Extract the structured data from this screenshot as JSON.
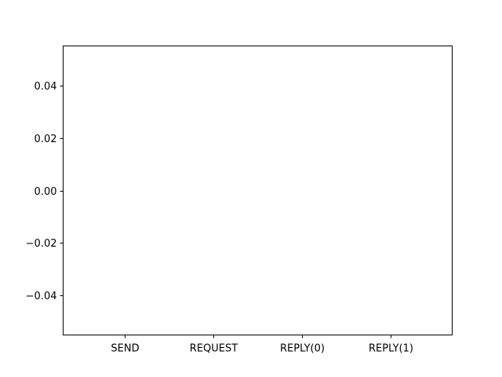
{
  "chart_data": {
    "type": "bar",
    "categories": [
      "SEND",
      "REQUEST",
      "REPLY(0)",
      "REPLY(1)"
    ],
    "values": [
      0,
      0,
      0,
      0
    ],
    "title": "",
    "xlabel": "",
    "ylabel": "",
    "ylim": [
      -0.055,
      0.055
    ],
    "yticks": [
      0.04,
      0.02,
      0.0,
      -0.02,
      -0.04
    ],
    "ytick_labels": [
      "0.04",
      "0.02",
      "0.00",
      "−0.02",
      "−0.04"
    ],
    "grid": false,
    "legend": false
  }
}
